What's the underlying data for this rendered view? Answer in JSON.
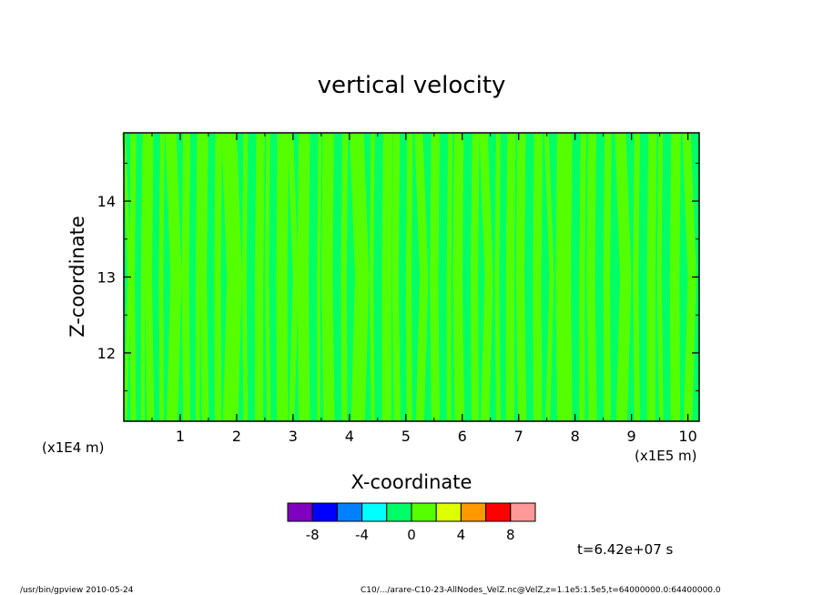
{
  "chart_data": {
    "type": "heatmap",
    "title": "vertical velocity",
    "xlabel": "X-coordinate",
    "ylabel": "Z-coordinate",
    "x_unit_label": "(x1E5 m)",
    "y_unit_label": "(x1E4 m)",
    "xlim": [
      0,
      10.2
    ],
    "ylim": [
      11.1,
      14.9
    ],
    "x_ticks": [
      "1",
      "2",
      "3",
      "4",
      "5",
      "6",
      "7",
      "8",
      "9",
      "10"
    ],
    "x_tick_values": [
      1,
      2,
      3,
      4,
      5,
      6,
      7,
      8,
      9,
      10
    ],
    "y_ticks": [
      "12",
      "13",
      "14"
    ],
    "y_tick_values": [
      12,
      13,
      14
    ],
    "value_range": [
      -10,
      10
    ],
    "background_class_color": "#00ff66",
    "positive_class_color": "#55ff00",
    "lighter_positive_bands_x": [
      [
        0.02,
        0.08
      ],
      [
        0.12,
        0.22
      ],
      [
        0.28,
        0.35
      ],
      [
        0.42,
        0.55
      ],
      [
        0.62,
        0.7
      ],
      [
        0.78,
        0.98
      ],
      [
        1.05,
        1.18
      ],
      [
        1.25,
        1.33
      ],
      [
        1.4,
        1.52
      ],
      [
        1.6,
        1.72
      ],
      [
        1.78,
        2.05
      ],
      [
        2.12,
        2.2
      ],
      [
        2.3,
        2.45
      ],
      [
        2.55,
        2.62
      ],
      [
        2.7,
        2.9
      ],
      [
        2.95,
        3.05
      ],
      [
        3.1,
        3.3
      ],
      [
        3.4,
        3.46
      ],
      [
        3.55,
        3.75
      ],
      [
        3.85,
        3.95
      ],
      [
        4.05,
        4.3
      ],
      [
        4.38,
        4.45
      ],
      [
        4.55,
        4.72
      ],
      [
        4.8,
        4.92
      ],
      [
        5.0,
        5.1
      ],
      [
        5.2,
        5.35
      ],
      [
        5.45,
        5.6
      ],
      [
        5.7,
        5.78
      ],
      [
        5.88,
        6.05
      ],
      [
        6.15,
        6.28
      ],
      [
        6.35,
        6.5
      ],
      [
        6.6,
        6.68
      ],
      [
        6.75,
        6.9
      ],
      [
        7.0,
        7.15
      ],
      [
        7.25,
        7.4
      ],
      [
        7.5,
        7.58
      ],
      [
        7.68,
        7.95
      ],
      [
        8.05,
        8.15
      ],
      [
        8.25,
        8.4
      ],
      [
        8.5,
        8.62
      ],
      [
        8.75,
        8.95
      ],
      [
        9.05,
        9.15
      ],
      [
        9.25,
        9.4
      ],
      [
        9.5,
        9.58
      ],
      [
        9.68,
        9.85
      ],
      [
        9.95,
        10.1
      ]
    ],
    "colorbar": {
      "colors": [
        "#8000c0",
        "#0000ff",
        "#0080ff",
        "#00ffff",
        "#00ff66",
        "#55ff00",
        "#ddff00",
        "#ff9900",
        "#ff0000",
        "#ff9999"
      ],
      "tick_labels": [
        "-8",
        "-4",
        "0",
        "4",
        "8"
      ],
      "tick_values": [
        -8,
        -4,
        0,
        4,
        8
      ],
      "range": [
        -10,
        10
      ]
    },
    "time_label": "t=6.42e+07 s"
  },
  "footer": {
    "left": "/usr/bin/gpview  2010-05-24",
    "right": "C10/.../arare-C10-23-AllNodes_VelZ.nc@VelZ,z=1.1e5:1.5e5,t=64000000.0:64400000.0"
  }
}
